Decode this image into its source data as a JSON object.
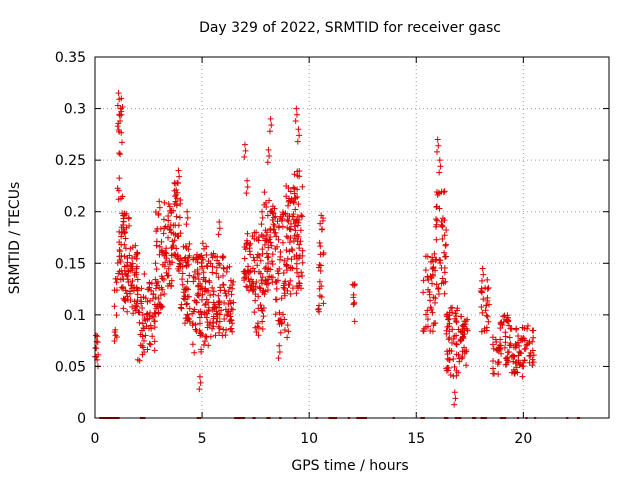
{
  "chart_data": {
    "type": "scatter",
    "title": "Day 329 of 2022, SRMTID for receiver gasc",
    "xlabel": "GPS time / hours",
    "ylabel": "SRMTID / TECUs",
    "xlim": [
      0,
      24
    ],
    "ylim": [
      0,
      0.35
    ],
    "xticks": [
      0,
      5,
      10,
      15,
      20
    ],
    "yticks": [
      0,
      0.05,
      0.1,
      0.15,
      0.2,
      0.25,
      0.3,
      0.35
    ],
    "ytick_labels": [
      "0",
      "0.05",
      "0.1",
      "0.15",
      "0.2",
      "0.25",
      "0.3",
      "0.35"
    ],
    "xtick_labels": [
      "0",
      "5",
      "10",
      "15",
      "20"
    ],
    "grid": true,
    "marker": "+",
    "color": "#e00000",
    "series": [
      {
        "name": "SRMTID",
        "segments": [
          {
            "x0": 0.0,
            "x1": 0.15,
            "y_min": 0.05,
            "y_max": 0.08,
            "peaks": [
              [
                0.05,
                0.08
              ]
            ],
            "n": 8
          },
          {
            "x0": 0.9,
            "x1": 1.05,
            "y_min": 0.07,
            "y_max": 0.14,
            "peaks": [],
            "n": 12
          },
          {
            "x0": 1.05,
            "x1": 1.3,
            "y_min": 0.12,
            "y_max": 0.31,
            "peaks": [
              [
                1.1,
                0.315
              ],
              [
                1.2,
                0.3
              ]
            ],
            "n": 40
          },
          {
            "x0": 1.3,
            "x1": 1.6,
            "y_min": 0.1,
            "y_max": 0.2,
            "peaks": [
              [
                1.4,
                0.18
              ]
            ],
            "n": 45
          },
          {
            "x0": 1.6,
            "x1": 2.0,
            "y_min": 0.1,
            "y_max": 0.17,
            "peaks": [],
            "n": 45
          },
          {
            "x0": 2.0,
            "x1": 2.3,
            "y_min": 0.05,
            "y_max": 0.13,
            "peaks": [],
            "n": 25
          },
          {
            "x0": 2.3,
            "x1": 2.8,
            "y_min": 0.06,
            "y_max": 0.14,
            "peaks": [],
            "n": 40
          },
          {
            "x0": 2.8,
            "x1": 3.2,
            "y_min": 0.1,
            "y_max": 0.2,
            "peaks": [
              [
                3.0,
                0.21
              ]
            ],
            "n": 40
          },
          {
            "x0": 3.2,
            "x1": 3.6,
            "y_min": 0.12,
            "y_max": 0.21,
            "peaks": [],
            "n": 45
          },
          {
            "x0": 3.6,
            "x1": 4.0,
            "y_min": 0.14,
            "y_max": 0.23,
            "peaks": [
              [
                3.9,
                0.24
              ]
            ],
            "n": 45
          },
          {
            "x0": 4.0,
            "x1": 4.5,
            "y_min": 0.09,
            "y_max": 0.17,
            "peaks": [
              [
                4.3,
                0.2
              ]
            ],
            "n": 50
          },
          {
            "x0": 4.5,
            "x1": 5.0,
            "y_min": 0.06,
            "y_max": 0.16,
            "peaks": [
              [
                4.9,
                0.04
              ]
            ],
            "n": 55
          },
          {
            "x0": 5.0,
            "x1": 5.5,
            "y_min": 0.07,
            "y_max": 0.17,
            "peaks": [],
            "n": 55
          },
          {
            "x0": 5.5,
            "x1": 6.0,
            "y_min": 0.08,
            "y_max": 0.16,
            "peaks": [
              [
                5.8,
                0.19
              ]
            ],
            "n": 50
          },
          {
            "x0": 6.0,
            "x1": 6.5,
            "y_min": 0.08,
            "y_max": 0.15,
            "peaks": [],
            "n": 40
          },
          {
            "x0": 6.9,
            "x1": 7.4,
            "y_min": 0.12,
            "y_max": 0.18,
            "peaks": [
              [
                7.0,
                0.265
              ],
              [
                7.1,
                0.23
              ]
            ],
            "n": 40
          },
          {
            "x0": 7.4,
            "x1": 7.9,
            "y_min": 0.08,
            "y_max": 0.18,
            "peaks": [
              [
                7.8,
                0.2
              ]
            ],
            "n": 50
          },
          {
            "x0": 7.9,
            "x1": 8.4,
            "y_min": 0.12,
            "y_max": 0.22,
            "peaks": [
              [
                8.2,
                0.29
              ],
              [
                8.1,
                0.26
              ]
            ],
            "n": 60
          },
          {
            "x0": 8.4,
            "x1": 8.9,
            "y_min": 0.08,
            "y_max": 0.2,
            "peaks": [
              [
                8.6,
                0.07
              ]
            ],
            "n": 55
          },
          {
            "x0": 8.9,
            "x1": 9.3,
            "y_min": 0.12,
            "y_max": 0.23,
            "peaks": [
              [
                9.0,
                0.09
              ]
            ],
            "n": 50
          },
          {
            "x0": 9.3,
            "x1": 9.7,
            "y_min": 0.12,
            "y_max": 0.24,
            "peaks": [
              [
                9.4,
                0.3
              ],
              [
                9.5,
                0.28
              ]
            ],
            "n": 55
          },
          {
            "x0": 10.4,
            "x1": 10.7,
            "y_min": 0.1,
            "y_max": 0.2,
            "peaks": [],
            "n": 25
          },
          {
            "x0": 12.0,
            "x1": 12.15,
            "y_min": 0.09,
            "y_max": 0.13,
            "peaks": [],
            "n": 10
          },
          {
            "x0": 15.3,
            "x1": 15.9,
            "y_min": 0.08,
            "y_max": 0.16,
            "peaks": [],
            "n": 45
          },
          {
            "x0": 15.9,
            "x1": 16.4,
            "y_min": 0.12,
            "y_max": 0.22,
            "peaks": [
              [
                16.0,
                0.27
              ],
              [
                16.1,
                0.25
              ]
            ],
            "n": 45
          },
          {
            "x0": 16.4,
            "x1": 17.0,
            "y_min": 0.04,
            "y_max": 0.11,
            "peaks": [
              [
                16.8,
                0.025
              ]
            ],
            "n": 55
          },
          {
            "x0": 17.0,
            "x1": 17.4,
            "y_min": 0.05,
            "y_max": 0.1,
            "peaks": [],
            "n": 35
          },
          {
            "x0": 18.0,
            "x1": 18.4,
            "y_min": 0.08,
            "y_max": 0.14,
            "peaks": [
              [
                18.1,
                0.145
              ]
            ],
            "n": 25
          },
          {
            "x0": 18.5,
            "x1": 18.9,
            "y_min": 0.04,
            "y_max": 0.08,
            "peaks": [],
            "n": 20
          },
          {
            "x0": 18.9,
            "x1": 19.4,
            "y_min": 0.05,
            "y_max": 0.1,
            "peaks": [],
            "n": 40
          },
          {
            "x0": 19.4,
            "x1": 20.1,
            "y_min": 0.04,
            "y_max": 0.09,
            "peaks": [],
            "n": 50
          },
          {
            "x0": 20.1,
            "x1": 20.5,
            "y_min": 0.05,
            "y_max": 0.09,
            "peaks": [],
            "n": 20
          }
        ]
      }
    ],
    "zero_line_segments": [
      [
        0.2,
        1.15
      ],
      [
        2.1,
        2.35
      ],
      [
        4.75,
        4.95
      ],
      [
        6.5,
        7.0
      ],
      [
        7.35,
        7.5
      ],
      [
        8.0,
        8.2
      ],
      [
        8.6,
        8.7
      ],
      [
        9.3,
        9.4
      ],
      [
        10.3,
        10.4
      ],
      [
        10.9,
        11.3
      ],
      [
        11.8,
        11.9
      ],
      [
        12.2,
        12.7
      ],
      [
        13.9,
        14.0
      ],
      [
        15.2,
        15.4
      ],
      [
        16.3,
        16.5
      ],
      [
        16.8,
        17.1
      ],
      [
        17.6,
        17.8
      ],
      [
        18.0,
        18.3
      ],
      [
        18.9,
        19.2
      ],
      [
        19.7,
        19.8
      ],
      [
        20.1,
        20.2
      ],
      [
        20.5,
        20.6
      ],
      [
        22.0,
        22.1
      ],
      [
        22.5,
        22.65
      ]
    ]
  }
}
